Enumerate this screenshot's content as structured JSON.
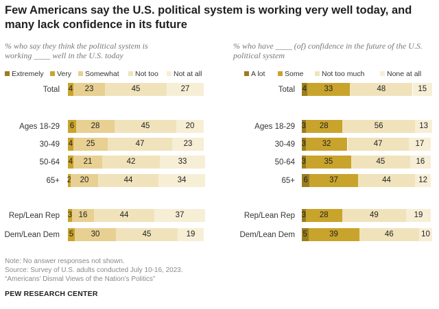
{
  "title": "Few Americans say the U.S. political system is working very well today, and many lack confidence in its future",
  "colors": {
    "c0": "#9a7d1e",
    "c1": "#c9a42c",
    "c2": "#e7d091",
    "c3": "#f0e3bc",
    "c4": "#f7eed6"
  },
  "chart_data": [
    {
      "type": "bar",
      "stacked": true,
      "orientation": "horizontal",
      "subtitle": "% who say they think the political system is working ____ well in the U.S. today",
      "categories": [
        "Total",
        "Ages 18-29",
        "30-49",
        "50-64",
        "65+",
        "Rep/Lean Rep",
        "Dem/Lean Dem"
      ],
      "series": [
        {
          "name": "Extremely",
          "values": [
            0,
            0,
            0,
            0,
            0,
            0,
            0
          ]
        },
        {
          "name": "Very",
          "values": [
            4,
            6,
            4,
            4,
            2,
            3,
            5
          ]
        },
        {
          "name": "Somewhat",
          "values": [
            23,
            28,
            25,
            21,
            20,
            16,
            30
          ]
        },
        {
          "name": "Not too",
          "values": [
            45,
            45,
            47,
            42,
            44,
            44,
            45
          ]
        },
        {
          "name": "Not at all",
          "values": [
            27,
            20,
            23,
            33,
            34,
            37,
            19
          ]
        }
      ],
      "xlim": [
        0,
        100
      ]
    },
    {
      "type": "bar",
      "stacked": true,
      "orientation": "horizontal",
      "subtitle": "% who have ____ (of) confidence in the future of the U.S. political system",
      "categories": [
        "Total",
        "Ages 18-29",
        "30-49",
        "50-64",
        "65+",
        "Rep/Lean Rep",
        "Dem/Lean Dem"
      ],
      "series": [
        {
          "name": "A lot",
          "values": [
            4,
            3,
            3,
            3,
            6,
            3,
            5
          ]
        },
        {
          "name": "Some",
          "values": [
            33,
            28,
            32,
            35,
            37,
            28,
            39
          ]
        },
        {
          "name": "Not too much",
          "values": [
            48,
            56,
            47,
            45,
            44,
            49,
            46
          ]
        },
        {
          "name": "None at all",
          "values": [
            15,
            13,
            17,
            16,
            12,
            19,
            10
          ]
        }
      ],
      "xlim": [
        0,
        100
      ]
    }
  ],
  "footer": {
    "note": "Note: No answer responses not shown.",
    "source": "Source: Survey of U.S. adults conducted July 10-16, 2023.",
    "report": "“Americans’ Dismal Views of the Nation’s Politics”",
    "brand": "PEW RESEARCH CENTER"
  }
}
